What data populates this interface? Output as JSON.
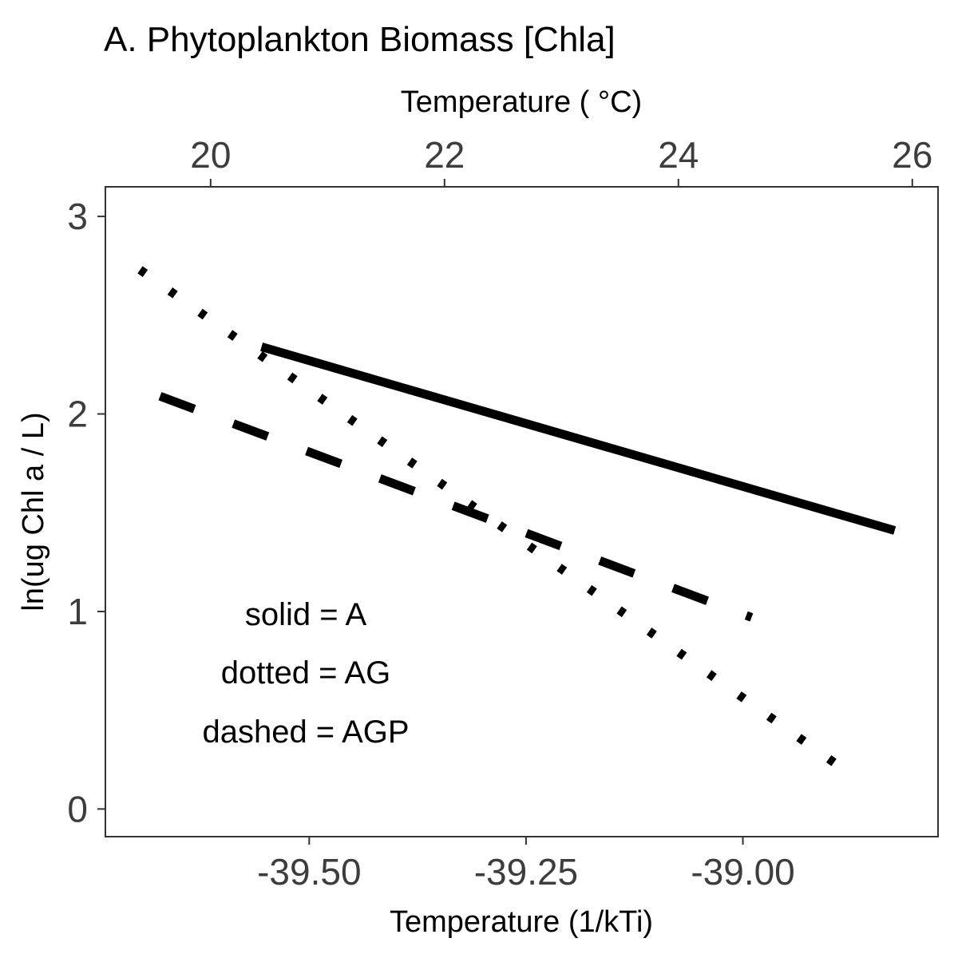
{
  "chart_data": {
    "type": "line",
    "title": "A. Phytoplankton Biomass [Chla]",
    "xlabel": "Temperature (1/kTi)",
    "x2label": "Temperature ( °C)",
    "ylabel": "ln(ug Chl a / L)",
    "xlim": [
      -39.735,
      -38.775
    ],
    "ylim": [
      -0.14,
      3.15
    ],
    "x2lim": [
      19.1,
      26.22
    ],
    "xticks": [
      -39.5,
      -39.25,
      -39.0
    ],
    "xtick_labels": [
      "-39.50",
      "-39.25",
      "-39.00"
    ],
    "x2ticks": [
      20,
      22,
      24,
      26
    ],
    "x2tick_labels": [
      "20",
      "22",
      "24",
      "26"
    ],
    "yticks": [
      0,
      1,
      2,
      3
    ],
    "ytick_labels": [
      "0",
      "1",
      "2",
      "3"
    ],
    "grid": false,
    "series": [
      {
        "name": "A",
        "style": "solid",
        "x": [
          -39.555,
          -38.825
        ],
        "y": [
          2.34,
          1.41
        ]
      },
      {
        "name": "AG",
        "style": "dotted",
        "x": [
          -39.695,
          -38.89
        ],
        "y": [
          2.73,
          0.22
        ]
      },
      {
        "name": "AGP",
        "style": "dashed",
        "x": [
          -39.672,
          -38.99
        ],
        "y": [
          2.09,
          0.97
        ]
      }
    ],
    "annotations": [
      "solid = A",
      "dotted = AG",
      "dashed = AGP"
    ],
    "line_color": "#000000",
    "axis_text_color": "#3d3d3d",
    "frame_color": "#333333"
  }
}
